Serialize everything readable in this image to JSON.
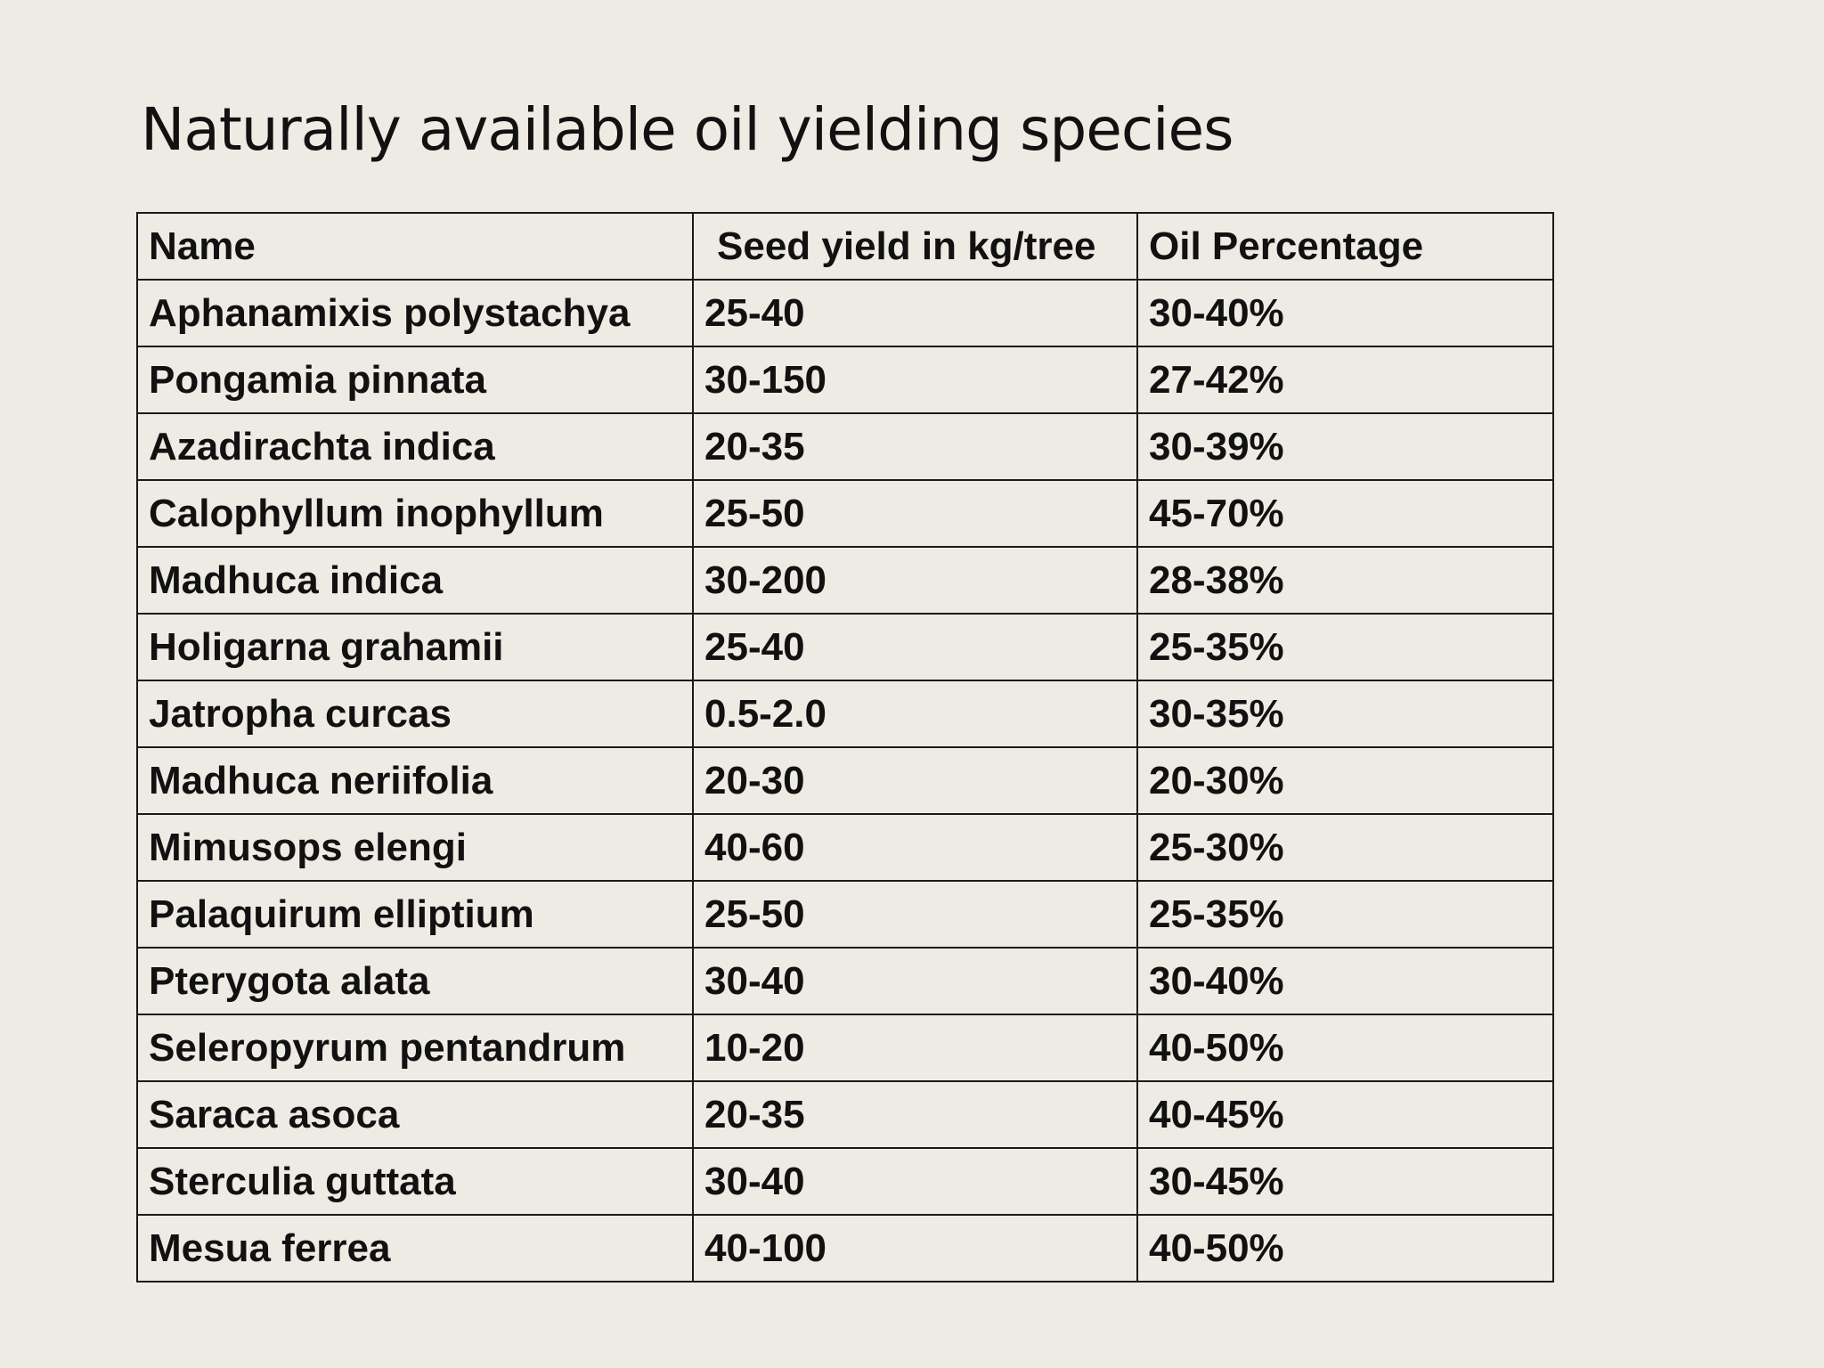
{
  "title": "Naturally available oil yielding species",
  "table": {
    "headers": [
      "Name",
      "Seed yield in kg/tree",
      "Oil Percentage"
    ],
    "rows": [
      [
        "Aphanamixis polystachya",
        "25-40",
        "30-40%"
      ],
      [
        "Pongamia pinnata",
        "30-150",
        "27-42%"
      ],
      [
        "Azadirachta indica",
        "20-35",
        "30-39%"
      ],
      [
        "Calophyllum inophyllum",
        "25-50",
        "45-70%"
      ],
      [
        "Madhuca indica",
        "30-200",
        "28-38%"
      ],
      [
        "Holigarna grahamii",
        "25-40",
        "25-35%"
      ],
      [
        "Jatropha curcas",
        "0.5-2.0",
        "30-35%"
      ],
      [
        "Madhuca neriifolia",
        "20-30",
        "20-30%"
      ],
      [
        "Mimusops elengi",
        "40-60",
        "25-30%"
      ],
      [
        "Palaquirum elliptium",
        "25-50",
        "25-35%"
      ],
      [
        "Pterygota alata",
        "30-40",
        "30-40%"
      ],
      [
        "Seleropyrum pentandrum",
        "10-20",
        "40-50%"
      ],
      [
        "Saraca asoca",
        "20-35",
        "40-45%"
      ],
      [
        "Sterculia guttata",
        "30-40",
        "30-45%"
      ],
      [
        "Mesua ferrea",
        "40-100",
        "40-50%"
      ]
    ]
  }
}
